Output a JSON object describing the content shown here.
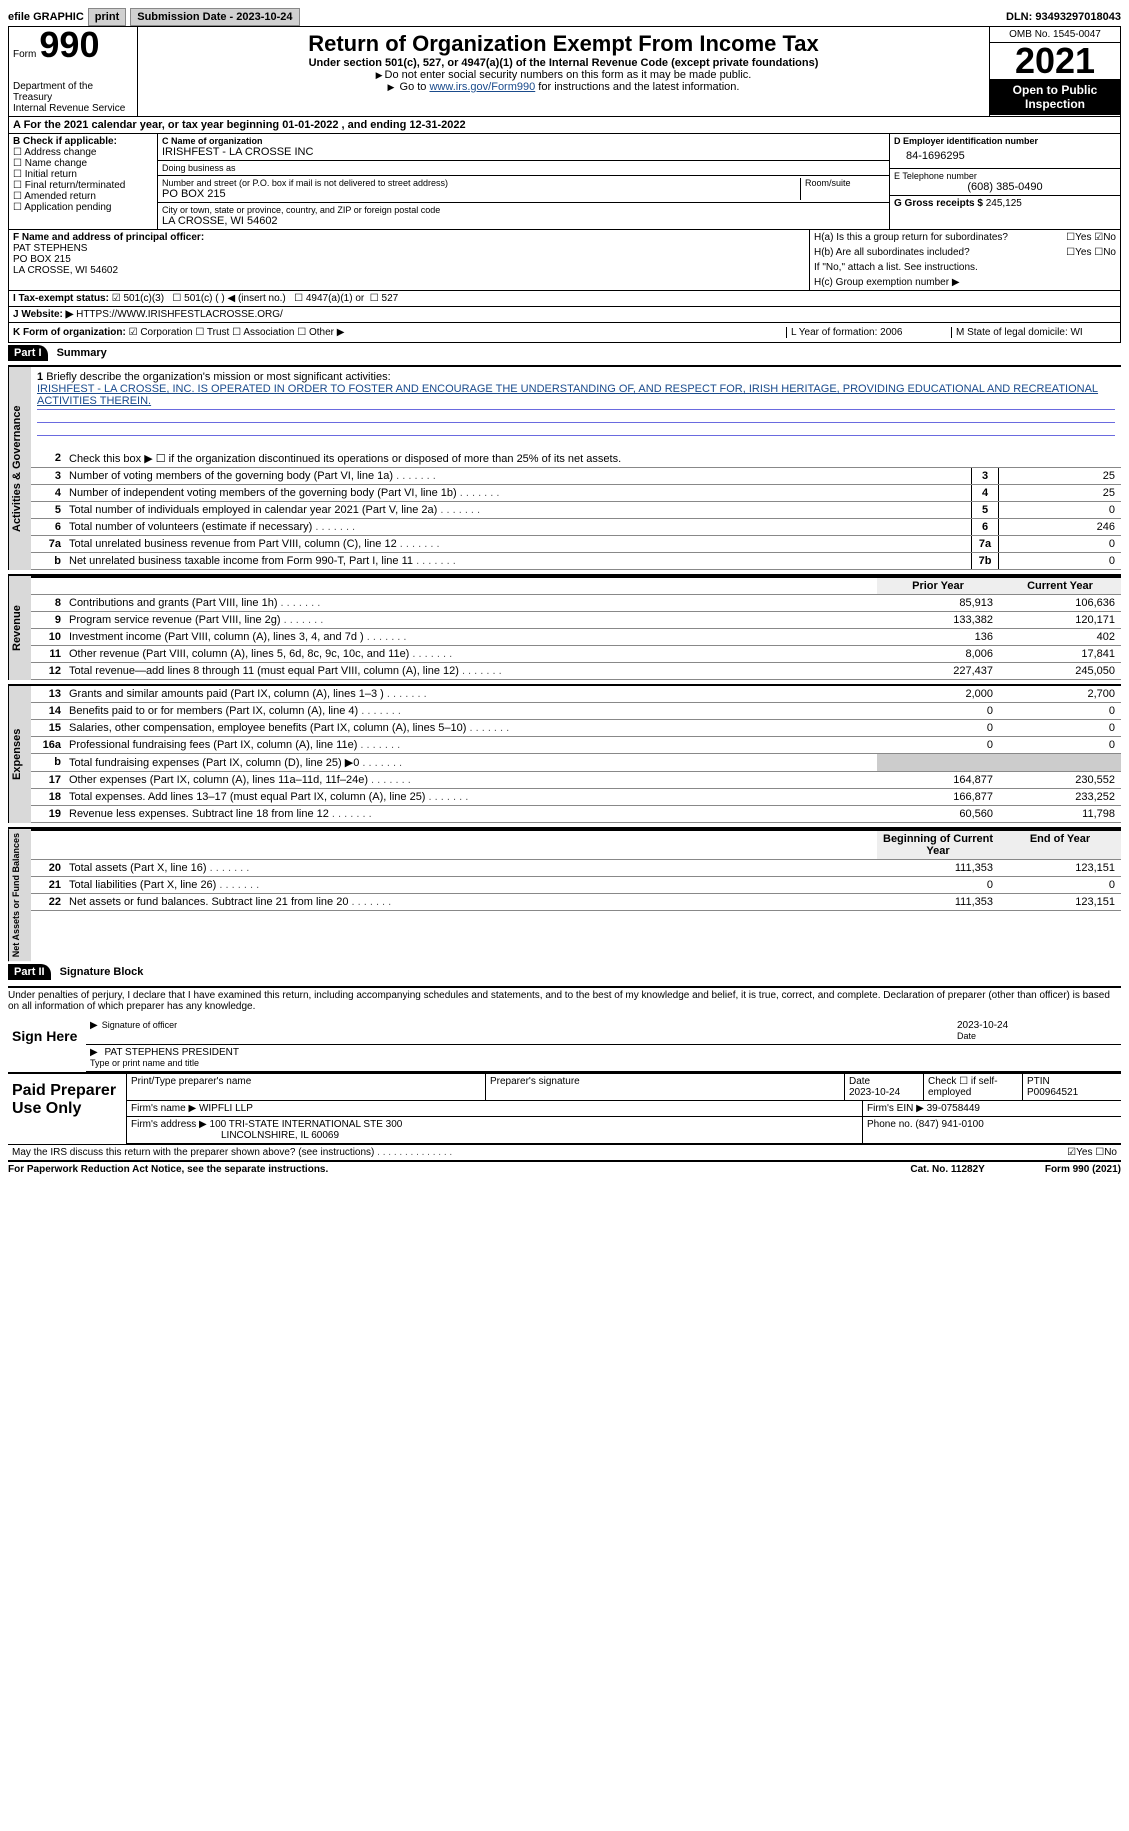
{
  "topbar": {
    "efile": "efile GRAPHIC",
    "print": "print",
    "sub_label": "Submission Date - 2023-10-24",
    "dln": "DLN: 93493297018043"
  },
  "header": {
    "form_word": "Form",
    "form_num": "990",
    "dept": "Department of the Treasury",
    "irs": "Internal Revenue Service",
    "title": "Return of Organization Exempt From Income Tax",
    "sub1": "Under section 501(c), 527, or 4947(a)(1) of the Internal Revenue Code (except private foundations)",
    "sub2": "Do not enter social security numbers on this form as it may be made public.",
    "sub3_pre": "Go to ",
    "sub3_link": "www.irs.gov/Form990",
    "sub3_post": " for instructions and the latest information.",
    "omb": "OMB No. 1545-0047",
    "year": "2021",
    "open": "Open to Public Inspection"
  },
  "row_a": "A For the 2021 calendar year, or tax year beginning 01-01-2022   , and ending 12-31-2022",
  "col_b": {
    "heading": "B Check if applicable:",
    "items": [
      "Address change",
      "Name change",
      "Initial return",
      "Final return/terminated",
      "Amended return",
      "Application pending"
    ]
  },
  "col_c": {
    "c_name_label": "C Name of organization",
    "c_name": "IRISHFEST - LA CROSSE INC",
    "dba_label": "Doing business as",
    "dba": "",
    "addr_label": "Number and street (or P.O. box if mail is not delivered to street address)",
    "room_label": "Room/suite",
    "addr": "PO BOX 215",
    "city_label": "City or town, state or province, country, and ZIP or foreign postal code",
    "city": "LA CROSSE, WI  54602"
  },
  "col_de": {
    "d_label": "D Employer identification number",
    "d_val": "84-1696295",
    "e_label": "E Telephone number",
    "e_val": "(608) 385-0490",
    "g_label": "G Gross receipts $",
    "g_val": "245,125"
  },
  "section_f": {
    "f_label": "F  Name and address of principal officer:",
    "f_name": "PAT STEPHENS",
    "f_addr1": "PO BOX 215",
    "f_addr2": "LA CROSSE, WI  54602"
  },
  "section_h": {
    "h_a": "H(a)  Is this a group return for subordinates?",
    "h_b": "H(b)  Are all subordinates included?",
    "h_b_note": "If \"No,\" attach a list. See instructions.",
    "h_c": "H(c)  Group exemption number ▶",
    "yes": "Yes",
    "no": "No"
  },
  "row_i": {
    "label": "I   Tax-exempt status:",
    "opt1": "501(c)(3)",
    "opt2": "501(c) (  ) ◀ (insert no.)",
    "opt3": "4947(a)(1) or",
    "opt4": "527"
  },
  "row_j": {
    "label": "J   Website: ▶",
    "val": "HTTPS://WWW.IRISHFESTLACROSSE.ORG/"
  },
  "row_k": {
    "label": "K Form of organization:",
    "opts": [
      "Corporation",
      "Trust",
      "Association",
      "Other ▶"
    ],
    "l": "L Year of formation: 2006",
    "m": "M State of legal domicile: WI"
  },
  "part1": {
    "bar": "Part I",
    "title": "Summary"
  },
  "mission": {
    "q1": "Briefly describe the organization's mission or most significant activities:",
    "text": "IRISHFEST - LA CROSSE, INC. IS OPERATED IN ORDER TO FOSTER AND ENCOURAGE THE UNDERSTANDING OF, AND RESPECT FOR, IRISH HERITAGE, PROVIDING EDUCATIONAL AND RECREATIONAL ACTIVITIES THEREIN."
  },
  "line2": "Check this box ▶ ☐  if the organization discontinued its operations or disposed of more than 25% of its net assets.",
  "gov_lines": [
    {
      "n": "3",
      "t": "Number of voting members of the governing body (Part VI, line 1a)",
      "box": "3",
      "v": "25"
    },
    {
      "n": "4",
      "t": "Number of independent voting members of the governing body (Part VI, line 1b)",
      "box": "4",
      "v": "25"
    },
    {
      "n": "5",
      "t": "Total number of individuals employed in calendar year 2021 (Part V, line 2a)",
      "box": "5",
      "v": "0"
    },
    {
      "n": "6",
      "t": "Total number of volunteers (estimate if necessary)",
      "box": "6",
      "v": "246"
    },
    {
      "n": "7a",
      "t": "Total unrelated business revenue from Part VIII, column (C), line 12",
      "box": "7a",
      "v": "0"
    },
    {
      "n": "b",
      "t": "Net unrelated business taxable income from Form 990-T, Part I, line 11",
      "box": "7b",
      "v": "0"
    }
  ],
  "rev_hdr": {
    "prior": "Prior Year",
    "current": "Current Year"
  },
  "rev_lines": [
    {
      "n": "8",
      "t": "Contributions and grants (Part VIII, line 1h)",
      "p": "85,913",
      "c": "106,636"
    },
    {
      "n": "9",
      "t": "Program service revenue (Part VIII, line 2g)",
      "p": "133,382",
      "c": "120,171"
    },
    {
      "n": "10",
      "t": "Investment income (Part VIII, column (A), lines 3, 4, and 7d )",
      "p": "136",
      "c": "402"
    },
    {
      "n": "11",
      "t": "Other revenue (Part VIII, column (A), lines 5, 6d, 8c, 9c, 10c, and 11e)",
      "p": "8,006",
      "c": "17,841"
    },
    {
      "n": "12",
      "t": "Total revenue—add lines 8 through 11 (must equal Part VIII, column (A), line 12)",
      "p": "227,437",
      "c": "245,050"
    }
  ],
  "exp_lines": [
    {
      "n": "13",
      "t": "Grants and similar amounts paid (Part IX, column (A), lines 1–3 )",
      "p": "2,000",
      "c": "2,700"
    },
    {
      "n": "14",
      "t": "Benefits paid to or for members (Part IX, column (A), line 4)",
      "p": "0",
      "c": "0"
    },
    {
      "n": "15",
      "t": "Salaries, other compensation, employee benefits (Part IX, column (A), lines 5–10)",
      "p": "0",
      "c": "0"
    },
    {
      "n": "16a",
      "t": "Professional fundraising fees (Part IX, column (A), line 11e)",
      "p": "0",
      "c": "0"
    },
    {
      "n": "b",
      "t": "Total fundraising expenses (Part IX, column (D), line 25) ▶0",
      "p": "",
      "c": "",
      "grey": true
    },
    {
      "n": "17",
      "t": "Other expenses (Part IX, column (A), lines 11a–11d, 11f–24e)",
      "p": "164,877",
      "c": "230,552"
    },
    {
      "n": "18",
      "t": "Total expenses. Add lines 13–17 (must equal Part IX, column (A), line 25)",
      "p": "166,877",
      "c": "233,252"
    },
    {
      "n": "19",
      "t": "Revenue less expenses. Subtract line 18 from line 12",
      "p": "60,560",
      "c": "11,798"
    }
  ],
  "net_hdr": {
    "begin": "Beginning of Current Year",
    "end": "End of Year"
  },
  "net_lines": [
    {
      "n": "20",
      "t": "Total assets (Part X, line 16)",
      "p": "111,353",
      "c": "123,151"
    },
    {
      "n": "21",
      "t": "Total liabilities (Part X, line 26)",
      "p": "0",
      "c": "0"
    },
    {
      "n": "22",
      "t": "Net assets or fund balances. Subtract line 21 from line 20",
      "p": "111,353",
      "c": "123,151"
    }
  ],
  "part2": {
    "bar": "Part II",
    "title": "Signature Block"
  },
  "penalty": "Under penalties of perjury, I declare that I have examined this return, including accompanying schedules and statements, and to the best of my knowledge and belief, it is true, correct, and complete. Declaration of preparer (other than officer) is based on all information of which preparer has any knowledge.",
  "sign": {
    "here": "Sign Here",
    "sig_label": "Signature of officer",
    "date": "2023-10-24",
    "date_label": "Date",
    "name": "PAT STEPHENS  PRESIDENT",
    "name_label": "Type or print name and title"
  },
  "prep": {
    "left": "Paid Preparer Use Only",
    "h1": "Print/Type preparer's name",
    "h2": "Preparer's signature",
    "h3": "Date",
    "h3v": "2023-10-24",
    "h4a": "Check ☐ if self-employed",
    "h5": "PTIN",
    "h5v": "P00964521",
    "firm_label": "Firm's name    ▶",
    "firm": "WIPFLI LLP",
    "ein_label": "Firm's EIN ▶",
    "ein": "39-0758449",
    "addr_label": "Firm's address ▶",
    "addr1": "100 TRI-STATE INTERNATIONAL STE 300",
    "addr2": "LINCOLNSHIRE, IL  60069",
    "phone_label": "Phone no.",
    "phone": "(847) 941-0100"
  },
  "discuss": "May the IRS discuss this return with the preparer shown above? (see instructions)",
  "footer": {
    "left": "For Paperwork Reduction Act Notice, see the separate instructions.",
    "mid": "Cat. No. 11282Y",
    "right": "Form 990 (2021)"
  },
  "vtabs": {
    "gov": "Activities & Governance",
    "rev": "Revenue",
    "exp": "Expenses",
    "net": "Net Assets or Fund Balances"
  }
}
